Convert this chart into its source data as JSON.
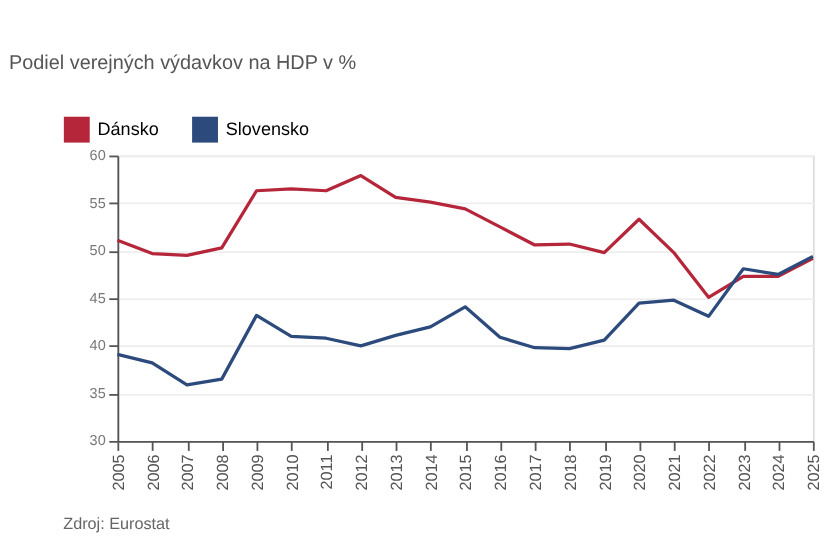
{
  "chart_data": {
    "type": "line",
    "title": "Podiel verejných výdavkov na HDP v %",
    "x": [
      2005,
      2006,
      2007,
      2008,
      2009,
      2010,
      2011,
      2012,
      2013,
      2014,
      2015,
      2016,
      2017,
      2018,
      2019,
      2020,
      2021,
      2022,
      2023,
      2024,
      2025
    ],
    "series": [
      {
        "name": "Dánsko",
        "color": "#b5263a",
        "values": [
          51.1,
          49.7,
          49.5,
          50.3,
          56.3,
          56.5,
          56.3,
          57.9,
          55.6,
          55.1,
          54.4,
          52.5,
          50.6,
          50.7,
          49.8,
          53.3,
          49.8,
          45.1,
          47.3,
          47.3,
          49.2
        ]
      },
      {
        "name": "Slovensko",
        "color": "#2c4a7c",
        "values": [
          39.1,
          38.2,
          35.9,
          36.5,
          43.2,
          41.0,
          40.8,
          40.0,
          41.1,
          42.0,
          44.1,
          40.9,
          39.8,
          39.7,
          40.6,
          44.5,
          44.8,
          43.1,
          48.1,
          47.5,
          49.4
        ]
      }
    ],
    "xlim": [
      2005,
      2025
    ],
    "xticks": [
      2005,
      2006,
      2007,
      2008,
      2009,
      2010,
      2011,
      2012,
      2013,
      2014,
      2015,
      2016,
      2017,
      2018,
      2019,
      2020,
      2021,
      2022,
      2023,
      2024,
      2025
    ],
    "ylim": [
      30,
      60
    ],
    "yticks": [
      30,
      35,
      40,
      45,
      50,
      55,
      60
    ],
    "grid": "y",
    "legend": "top left",
    "marker": "none",
    "line_style": "solid",
    "annotations": [
      "Zdroj: Eurostat"
    ]
  }
}
